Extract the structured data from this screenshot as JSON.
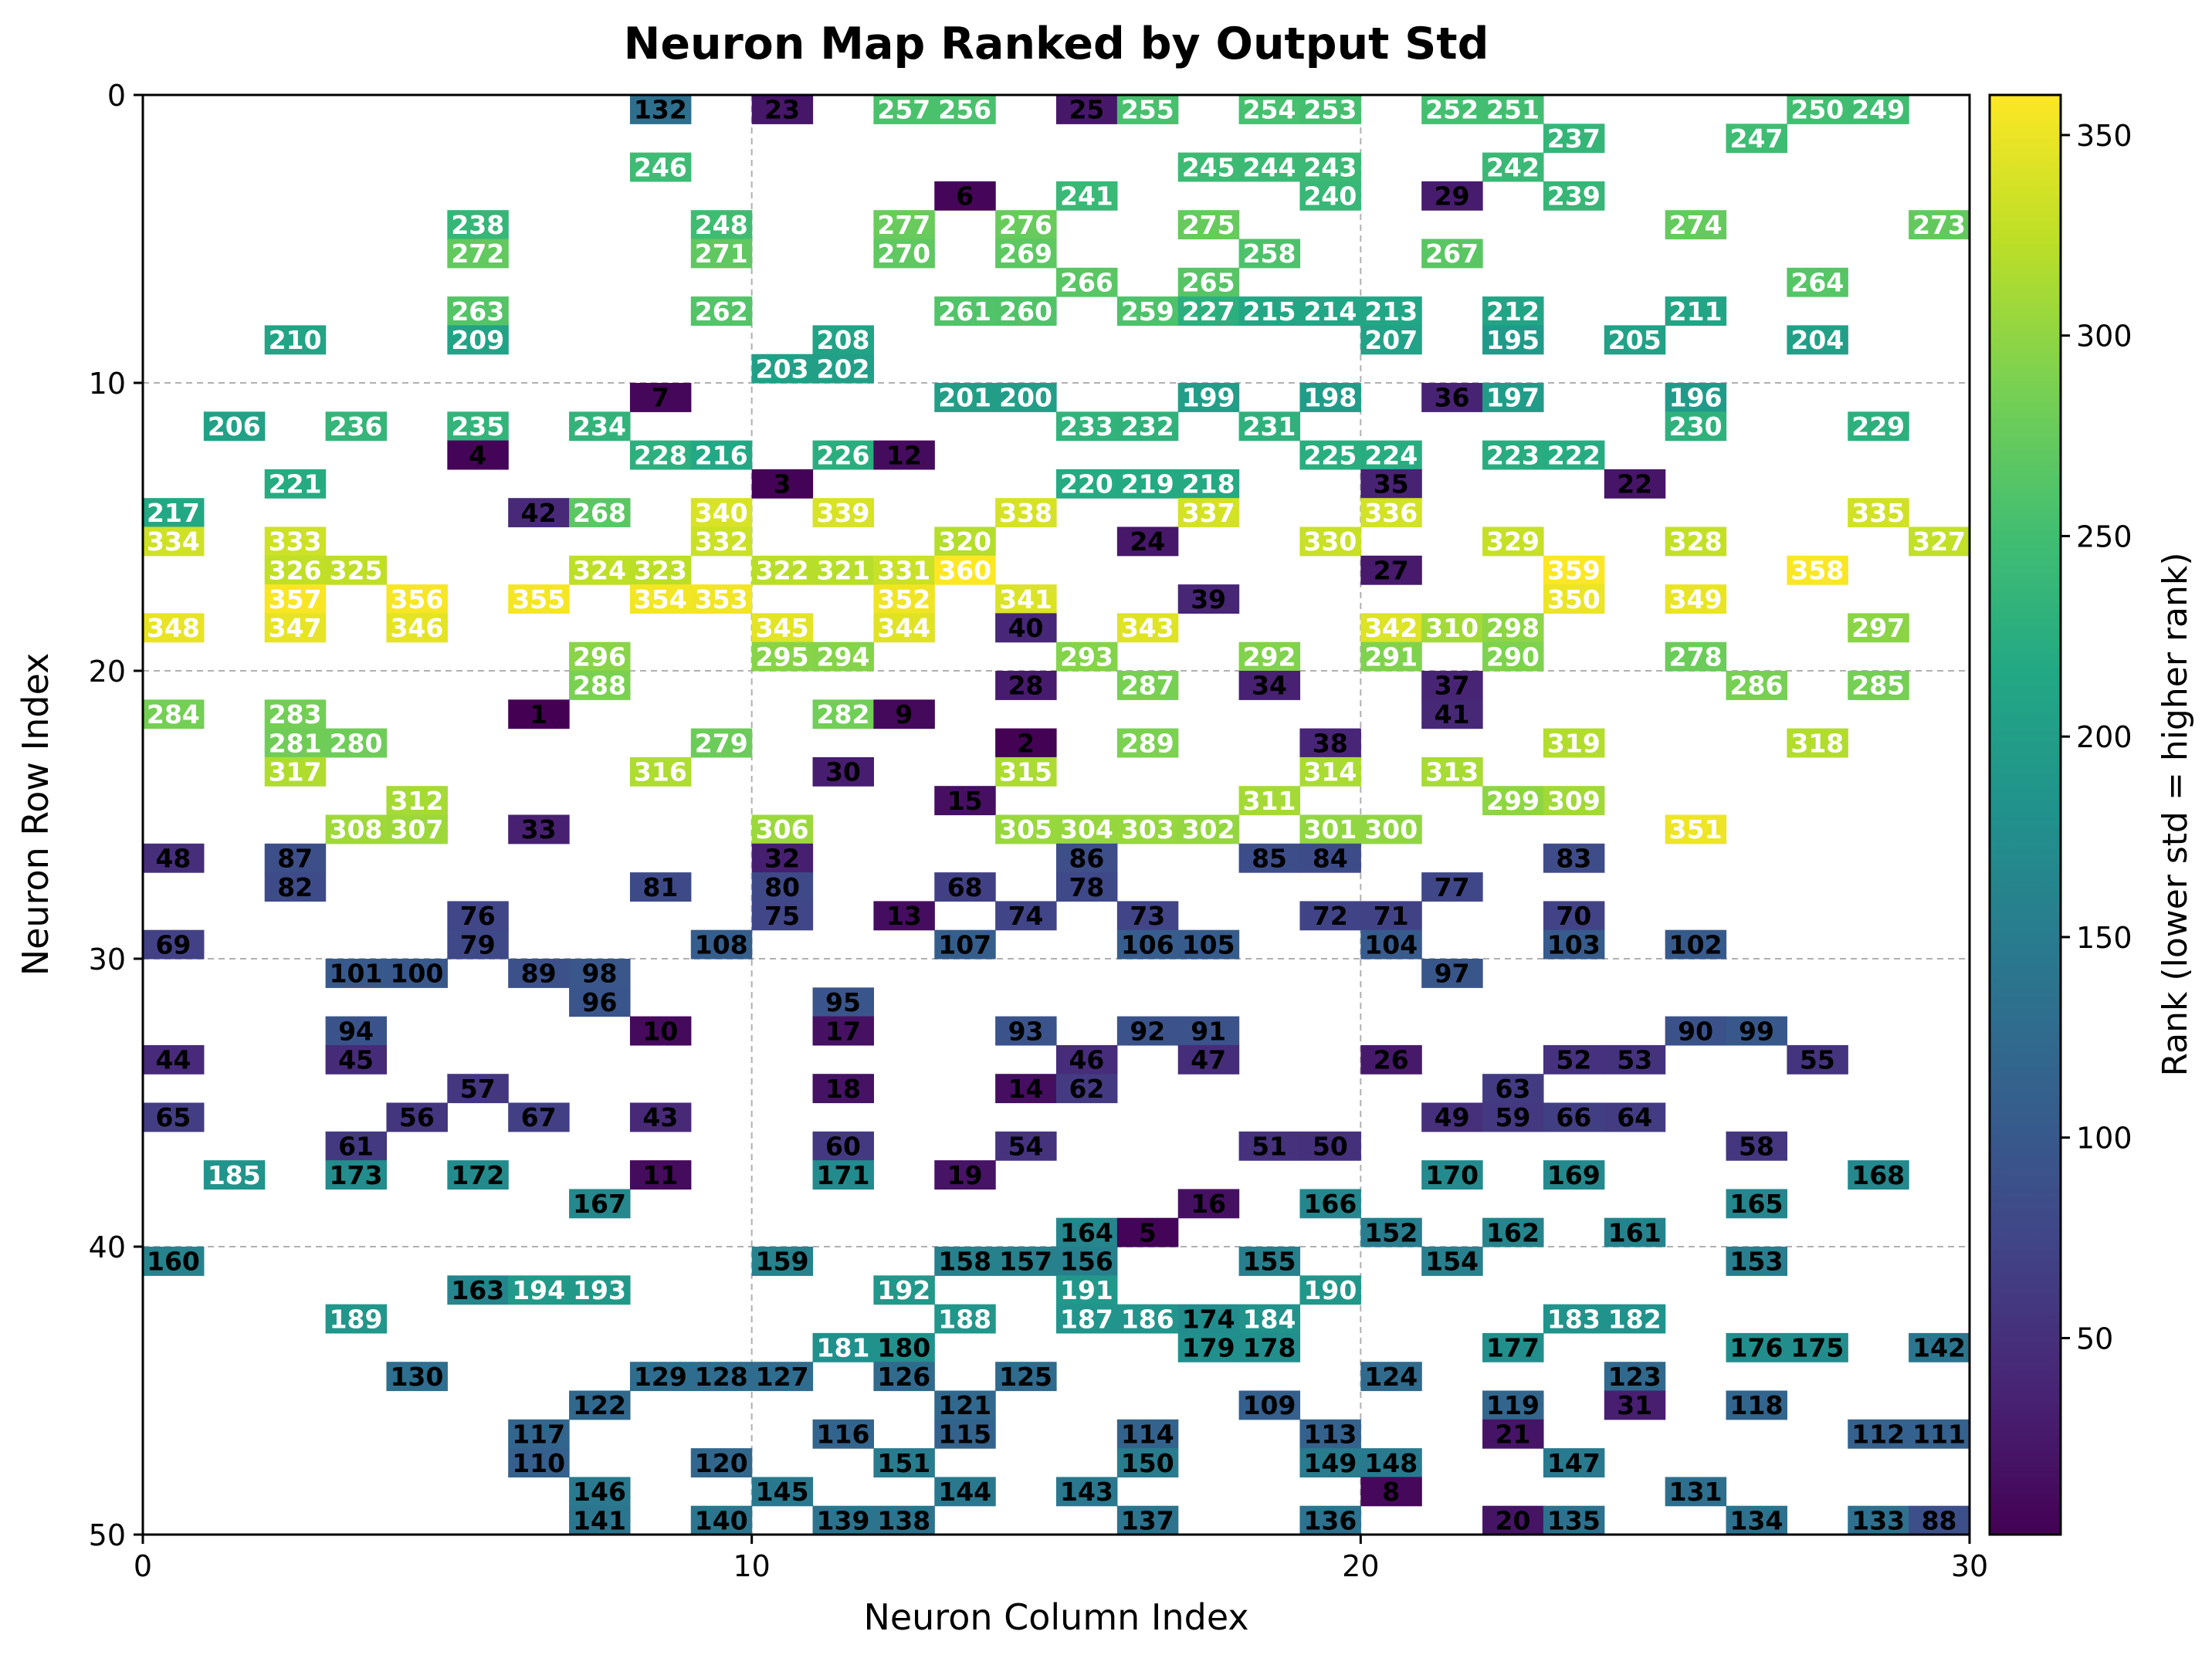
{
  "chart_data": {
    "type": "heatmap",
    "title": "Neuron Map Ranked by Output Std",
    "xlabel": "Neuron Column Index",
    "ylabel": "Neuron Row Index",
    "colorbar_label": "Rank (lower std = higher rank)",
    "colormap": "viridis",
    "xlim": [
      0,
      30
    ],
    "ylim": [
      50,
      0
    ],
    "xticks": [
      0,
      10,
      20,
      30
    ],
    "yticks": [
      0,
      10,
      20,
      30,
      40,
      50
    ],
    "colorbar_range": [
      1,
      360
    ],
    "colorbar_ticks": [
      50,
      100,
      150,
      200,
      250,
      300,
      350
    ],
    "grid": true,
    "cells": [
      [
        0,
        8,
        132
      ],
      [
        0,
        10,
        23
      ],
      [
        0,
        12,
        257
      ],
      [
        0,
        13,
        256
      ],
      [
        0,
        15,
        25
      ],
      [
        0,
        16,
        255
      ],
      [
        0,
        18,
        254
      ],
      [
        0,
        19,
        253
      ],
      [
        0,
        21,
        252
      ],
      [
        0,
        22,
        251
      ],
      [
        0,
        27,
        250
      ],
      [
        0,
        28,
        249
      ],
      [
        1,
        23,
        237
      ],
      [
        1,
        26,
        247
      ],
      [
        2,
        8,
        246
      ],
      [
        2,
        17,
        245
      ],
      [
        2,
        18,
        244
      ],
      [
        2,
        19,
        243
      ],
      [
        2,
        22,
        242
      ],
      [
        3,
        13,
        6
      ],
      [
        3,
        15,
        241
      ],
      [
        3,
        19,
        240
      ],
      [
        3,
        21,
        29
      ],
      [
        3,
        23,
        239
      ],
      [
        4,
        5,
        238
      ],
      [
        4,
        9,
        248
      ],
      [
        4,
        12,
        277
      ],
      [
        4,
        14,
        276
      ],
      [
        4,
        17,
        275
      ],
      [
        4,
        25,
        274
      ],
      [
        4,
        29,
        273
      ],
      [
        5,
        5,
        272
      ],
      [
        5,
        9,
        271
      ],
      [
        5,
        12,
        270
      ],
      [
        5,
        14,
        269
      ],
      [
        5,
        18,
        258
      ],
      [
        5,
        21,
        267
      ],
      [
        6,
        15,
        266
      ],
      [
        6,
        17,
        265
      ],
      [
        6,
        27,
        264
      ],
      [
        7,
        5,
        263
      ],
      [
        7,
        9,
        262
      ],
      [
        7,
        13,
        261
      ],
      [
        7,
        14,
        260
      ],
      [
        7,
        16,
        259
      ],
      [
        7,
        17,
        227
      ],
      [
        7,
        18,
        215
      ],
      [
        7,
        19,
        214
      ],
      [
        7,
        20,
        213
      ],
      [
        7,
        22,
        212
      ],
      [
        7,
        25,
        211
      ],
      [
        8,
        2,
        210
      ],
      [
        8,
        5,
        209
      ],
      [
        8,
        11,
        208
      ],
      [
        8,
        20,
        207
      ],
      [
        8,
        22,
        195
      ],
      [
        8,
        24,
        205
      ],
      [
        8,
        27,
        204
      ],
      [
        9,
        10,
        203
      ],
      [
        9,
        11,
        202
      ],
      [
        10,
        8,
        7
      ],
      [
        10,
        13,
        201
      ],
      [
        10,
        14,
        200
      ],
      [
        10,
        17,
        199
      ],
      [
        10,
        19,
        198
      ],
      [
        10,
        21,
        36
      ],
      [
        10,
        22,
        197
      ],
      [
        10,
        25,
        196
      ],
      [
        11,
        1,
        206
      ],
      [
        11,
        3,
        236
      ],
      [
        11,
        5,
        235
      ],
      [
        11,
        7,
        234
      ],
      [
        11,
        15,
        233
      ],
      [
        11,
        16,
        232
      ],
      [
        11,
        18,
        231
      ],
      [
        11,
        25,
        230
      ],
      [
        11,
        28,
        229
      ],
      [
        12,
        5,
        4
      ],
      [
        12,
        8,
        228
      ],
      [
        12,
        9,
        216
      ],
      [
        12,
        11,
        226
      ],
      [
        12,
        12,
        12
      ],
      [
        12,
        19,
        225
      ],
      [
        12,
        20,
        224
      ],
      [
        12,
        22,
        223
      ],
      [
        12,
        23,
        222
      ],
      [
        13,
        2,
        221
      ],
      [
        13,
        10,
        3
      ],
      [
        13,
        15,
        220
      ],
      [
        13,
        16,
        219
      ],
      [
        13,
        17,
        218
      ],
      [
        13,
        20,
        35
      ],
      [
        13,
        24,
        22
      ],
      [
        14,
        0,
        217
      ],
      [
        14,
        6,
        42
      ],
      [
        14,
        7,
        268
      ],
      [
        14,
        9,
        340
      ],
      [
        14,
        11,
        339
      ],
      [
        14,
        14,
        338
      ],
      [
        14,
        17,
        337
      ],
      [
        14,
        20,
        336
      ],
      [
        14,
        28,
        335
      ],
      [
        15,
        0,
        334
      ],
      [
        15,
        2,
        333
      ],
      [
        15,
        9,
        332
      ],
      [
        15,
        13,
        320
      ],
      [
        15,
        16,
        24
      ],
      [
        15,
        19,
        330
      ],
      [
        15,
        22,
        329
      ],
      [
        15,
        25,
        328
      ],
      [
        15,
        29,
        327
      ],
      [
        16,
        2,
        326
      ],
      [
        16,
        3,
        325
      ],
      [
        16,
        7,
        324
      ],
      [
        16,
        8,
        323
      ],
      [
        16,
        10,
        322
      ],
      [
        16,
        11,
        321
      ],
      [
        16,
        12,
        331
      ],
      [
        16,
        13,
        360
      ],
      [
        16,
        20,
        27
      ],
      [
        16,
        23,
        359
      ],
      [
        16,
        27,
        358
      ],
      [
        17,
        2,
        357
      ],
      [
        17,
        4,
        356
      ],
      [
        17,
        6,
        355
      ],
      [
        17,
        8,
        354
      ],
      [
        17,
        9,
        353
      ],
      [
        17,
        12,
        352
      ],
      [
        17,
        14,
        341
      ],
      [
        17,
        17,
        39
      ],
      [
        17,
        23,
        350
      ],
      [
        17,
        25,
        349
      ],
      [
        18,
        0,
        348
      ],
      [
        18,
        2,
        347
      ],
      [
        18,
        4,
        346
      ],
      [
        18,
        10,
        345
      ],
      [
        18,
        12,
        344
      ],
      [
        18,
        14,
        40
      ],
      [
        18,
        16,
        343
      ],
      [
        18,
        20,
        342
      ],
      [
        18,
        21,
        310
      ],
      [
        18,
        22,
        298
      ],
      [
        18,
        28,
        297
      ],
      [
        19,
        7,
        296
      ],
      [
        19,
        10,
        295
      ],
      [
        19,
        11,
        294
      ],
      [
        19,
        15,
        293
      ],
      [
        19,
        18,
        292
      ],
      [
        19,
        20,
        291
      ],
      [
        19,
        22,
        290
      ],
      [
        19,
        25,
        278
      ],
      [
        20,
        7,
        288
      ],
      [
        20,
        14,
        28
      ],
      [
        20,
        16,
        287
      ],
      [
        20,
        18,
        34
      ],
      [
        20,
        21,
        37
      ],
      [
        20,
        26,
        286
      ],
      [
        20,
        28,
        285
      ],
      [
        21,
        0,
        284
      ],
      [
        21,
        2,
        283
      ],
      [
        21,
        6,
        1
      ],
      [
        21,
        11,
        282
      ],
      [
        21,
        12,
        9
      ],
      [
        21,
        21,
        41
      ],
      [
        22,
        2,
        281
      ],
      [
        22,
        3,
        280
      ],
      [
        22,
        9,
        279
      ],
      [
        22,
        14,
        2
      ],
      [
        22,
        16,
        289
      ],
      [
        22,
        19,
        38
      ],
      [
        22,
        23,
        319
      ],
      [
        22,
        27,
        318
      ],
      [
        23,
        2,
        317
      ],
      [
        23,
        8,
        316
      ],
      [
        23,
        11,
        30
      ],
      [
        23,
        14,
        315
      ],
      [
        23,
        19,
        314
      ],
      [
        23,
        21,
        313
      ],
      [
        24,
        4,
        312
      ],
      [
        24,
        13,
        15
      ],
      [
        24,
        18,
        311
      ],
      [
        24,
        22,
        299
      ],
      [
        24,
        23,
        309
      ],
      [
        25,
        3,
        308
      ],
      [
        25,
        4,
        307
      ],
      [
        25,
        6,
        33
      ],
      [
        25,
        10,
        306
      ],
      [
        25,
        14,
        305
      ],
      [
        25,
        15,
        304
      ],
      [
        25,
        16,
        303
      ],
      [
        25,
        17,
        302
      ],
      [
        25,
        19,
        301
      ],
      [
        25,
        20,
        300
      ],
      [
        25,
        25,
        351
      ],
      [
        26,
        0,
        48
      ],
      [
        26,
        2,
        87
      ],
      [
        26,
        10,
        32
      ],
      [
        26,
        15,
        86
      ],
      [
        26,
        18,
        85
      ],
      [
        26,
        19,
        84
      ],
      [
        26,
        23,
        83
      ],
      [
        27,
        2,
        82
      ],
      [
        27,
        8,
        81
      ],
      [
        27,
        10,
        80
      ],
      [
        27,
        13,
        68
      ],
      [
        27,
        15,
        78
      ],
      [
        27,
        21,
        77
      ],
      [
        28,
        5,
        76
      ],
      [
        28,
        10,
        75
      ],
      [
        28,
        12,
        13
      ],
      [
        28,
        14,
        74
      ],
      [
        28,
        16,
        73
      ],
      [
        28,
        19,
        72
      ],
      [
        28,
        20,
        71
      ],
      [
        28,
        23,
        70
      ],
      [
        29,
        0,
        69
      ],
      [
        29,
        5,
        79
      ],
      [
        29,
        9,
        108
      ],
      [
        29,
        13,
        107
      ],
      [
        29,
        16,
        106
      ],
      [
        29,
        17,
        105
      ],
      [
        29,
        20,
        104
      ],
      [
        29,
        23,
        103
      ],
      [
        29,
        25,
        102
      ],
      [
        30,
        3,
        101
      ],
      [
        30,
        4,
        100
      ],
      [
        30,
        6,
        89
      ],
      [
        30,
        7,
        98
      ],
      [
        30,
        21,
        97
      ],
      [
        31,
        7,
        96
      ],
      [
        31,
        11,
        95
      ],
      [
        32,
        3,
        94
      ],
      [
        32,
        8,
        10
      ],
      [
        32,
        11,
        17
      ],
      [
        32,
        14,
        93
      ],
      [
        32,
        16,
        92
      ],
      [
        32,
        17,
        91
      ],
      [
        32,
        25,
        90
      ],
      [
        32,
        26,
        99
      ],
      [
        33,
        0,
        44
      ],
      [
        33,
        3,
        45
      ],
      [
        33,
        15,
        46
      ],
      [
        33,
        17,
        47
      ],
      [
        33,
        20,
        26
      ],
      [
        33,
        23,
        52
      ],
      [
        33,
        24,
        53
      ],
      [
        33,
        27,
        55
      ],
      [
        34,
        5,
        57
      ],
      [
        34,
        11,
        18
      ],
      [
        34,
        14,
        14
      ],
      [
        34,
        15,
        62
      ],
      [
        34,
        22,
        63
      ],
      [
        35,
        0,
        65
      ],
      [
        35,
        4,
        56
      ],
      [
        35,
        6,
        67
      ],
      [
        35,
        8,
        43
      ],
      [
        35,
        21,
        49
      ],
      [
        35,
        22,
        59
      ],
      [
        35,
        23,
        66
      ],
      [
        35,
        24,
        64
      ],
      [
        36,
        3,
        61
      ],
      [
        36,
        11,
        60
      ],
      [
        36,
        14,
        54
      ],
      [
        36,
        18,
        51
      ],
      [
        36,
        19,
        50
      ],
      [
        36,
        26,
        58
      ],
      [
        37,
        1,
        185
      ],
      [
        37,
        3,
        173
      ],
      [
        37,
        5,
        172
      ],
      [
        37,
        8,
        11
      ],
      [
        37,
        11,
        171
      ],
      [
        37,
        13,
        19
      ],
      [
        37,
        21,
        170
      ],
      [
        37,
        23,
        169
      ],
      [
        37,
        28,
        168
      ],
      [
        38,
        7,
        167
      ],
      [
        38,
        17,
        16
      ],
      [
        38,
        19,
        166
      ],
      [
        38,
        26,
        165
      ],
      [
        39,
        15,
        164
      ],
      [
        39,
        16,
        5
      ],
      [
        39,
        20,
        152
      ],
      [
        39,
        22,
        162
      ],
      [
        39,
        24,
        161
      ],
      [
        40,
        0,
        160
      ],
      [
        40,
        10,
        159
      ],
      [
        40,
        13,
        158
      ],
      [
        40,
        14,
        157
      ],
      [
        40,
        15,
        156
      ],
      [
        40,
        18,
        155
      ],
      [
        40,
        21,
        154
      ],
      [
        40,
        26,
        153
      ],
      [
        41,
        5,
        163
      ],
      [
        41,
        6,
        194
      ],
      [
        41,
        7,
        193
      ],
      [
        41,
        12,
        192
      ],
      [
        41,
        15,
        191
      ],
      [
        41,
        19,
        190
      ],
      [
        42,
        3,
        189
      ],
      [
        42,
        13,
        188
      ],
      [
        42,
        15,
        187
      ],
      [
        42,
        16,
        186
      ],
      [
        42,
        17,
        174
      ],
      [
        42,
        18,
        184
      ],
      [
        42,
        23,
        183
      ],
      [
        42,
        24,
        182
      ],
      [
        43,
        11,
        181
      ],
      [
        43,
        12,
        180
      ],
      [
        43,
        17,
        179
      ],
      [
        43,
        18,
        178
      ],
      [
        43,
        22,
        177
      ],
      [
        43,
        26,
        176
      ],
      [
        43,
        27,
        175
      ],
      [
        43,
        29,
        142
      ],
      [
        44,
        4,
        130
      ],
      [
        44,
        8,
        129
      ],
      [
        44,
        9,
        128
      ],
      [
        44,
        10,
        127
      ],
      [
        44,
        12,
        126
      ],
      [
        44,
        14,
        125
      ],
      [
        44,
        20,
        124
      ],
      [
        44,
        24,
        123
      ],
      [
        45,
        7,
        122
      ],
      [
        45,
        13,
        121
      ],
      [
        45,
        18,
        109
      ],
      [
        45,
        22,
        119
      ],
      [
        45,
        24,
        31
      ],
      [
        45,
        26,
        118
      ],
      [
        46,
        6,
        117
      ],
      [
        46,
        11,
        116
      ],
      [
        46,
        13,
        115
      ],
      [
        46,
        16,
        114
      ],
      [
        46,
        19,
        113
      ],
      [
        46,
        22,
        21
      ],
      [
        46,
        28,
        112
      ],
      [
        46,
        29,
        111
      ],
      [
        47,
        6,
        110
      ],
      [
        47,
        9,
        120
      ],
      [
        47,
        12,
        151
      ],
      [
        47,
        16,
        150
      ],
      [
        47,
        19,
        149
      ],
      [
        47,
        20,
        148
      ],
      [
        47,
        23,
        147
      ],
      [
        48,
        7,
        146
      ],
      [
        48,
        10,
        145
      ],
      [
        48,
        13,
        144
      ],
      [
        48,
        15,
        143
      ],
      [
        48,
        20,
        8
      ],
      [
        48,
        25,
        131
      ],
      [
        49,
        7,
        141
      ],
      [
        49,
        9,
        140
      ],
      [
        49,
        11,
        139
      ],
      [
        49,
        12,
        138
      ],
      [
        49,
        16,
        137
      ],
      [
        49,
        19,
        136
      ],
      [
        49,
        22,
        20
      ],
      [
        49,
        23,
        135
      ],
      [
        49,
        26,
        134
      ],
      [
        49,
        28,
        133
      ],
      [
        49,
        29,
        88
      ]
    ]
  }
}
